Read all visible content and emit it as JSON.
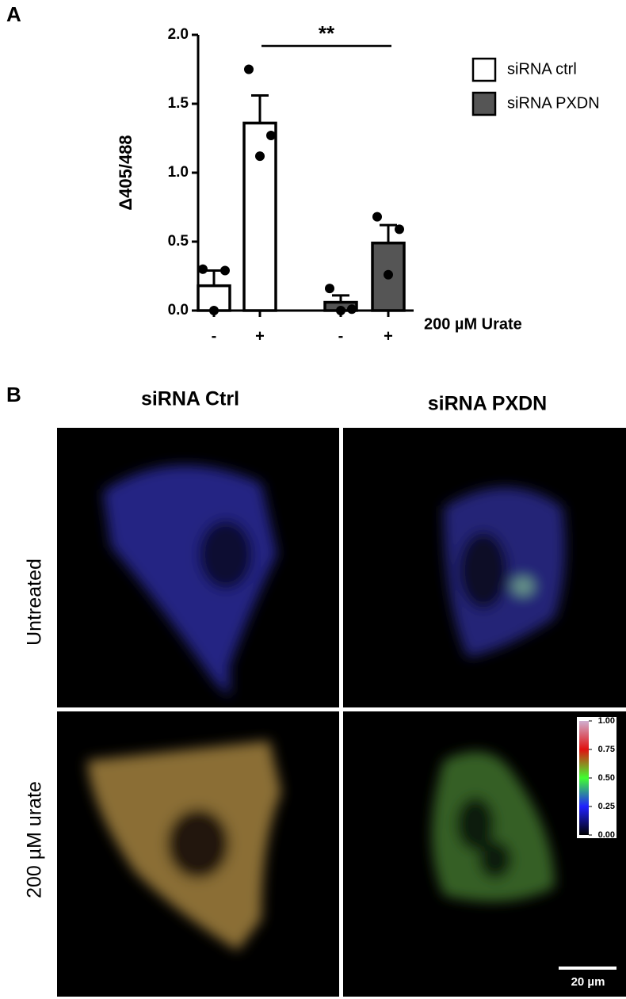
{
  "figure": {
    "panel_labels": [
      "A",
      "B"
    ]
  },
  "chart_data": {
    "type": "bar",
    "categories": [
      "-",
      "+",
      "-",
      "+"
    ],
    "x_label": "200 µM Urate",
    "y_label": "Δ405/488",
    "significance": "**",
    "ylim": [
      0,
      2
    ],
    "yticks": [
      {
        "value": 0,
        "label": "0.0"
      },
      0.5,
      {
        "value": 1,
        "label": "1.0"
      },
      1.5,
      {
        "value": 2,
        "label": "2.0"
      }
    ],
    "series": [
      {
        "name": "siRNA ctrl",
        "color": "#ffffff",
        "values": [
          0.18,
          1.36,
          null,
          null
        ],
        "errors": [
          0.11,
          0.2,
          null,
          null
        ],
        "points": [
          [
            0.3,
            0.29,
            0.0
          ],
          [
            1.75,
            1.27,
            1.12
          ],
          null,
          null
        ]
      },
      {
        "name": "siRNA PXDN",
        "color": "#555555",
        "values": [
          null,
          null,
          0.06,
          0.49
        ],
        "errors": [
          null,
          null,
          0.05,
          0.13
        ],
        "points": [
          null,
          null,
          [
            0.16,
            0.01,
            0.0
          ],
          [
            0.68,
            0.59,
            0.26
          ]
        ]
      }
    ]
  },
  "panel_b": {
    "columns": [
      "siRNA Ctrl",
      "siRNA PXDN"
    ],
    "rows": [
      "Untreated",
      "200 µM urate"
    ],
    "colorbar_ticks": [
      {
        "value": 1,
        "label": "1.00"
      },
      0.75,
      {
        "value": 0.5,
        "label": "0.50"
      },
      0.25,
      {
        "value": 0,
        "label": "0.00"
      }
    ],
    "scale_bar": "20 µm"
  }
}
